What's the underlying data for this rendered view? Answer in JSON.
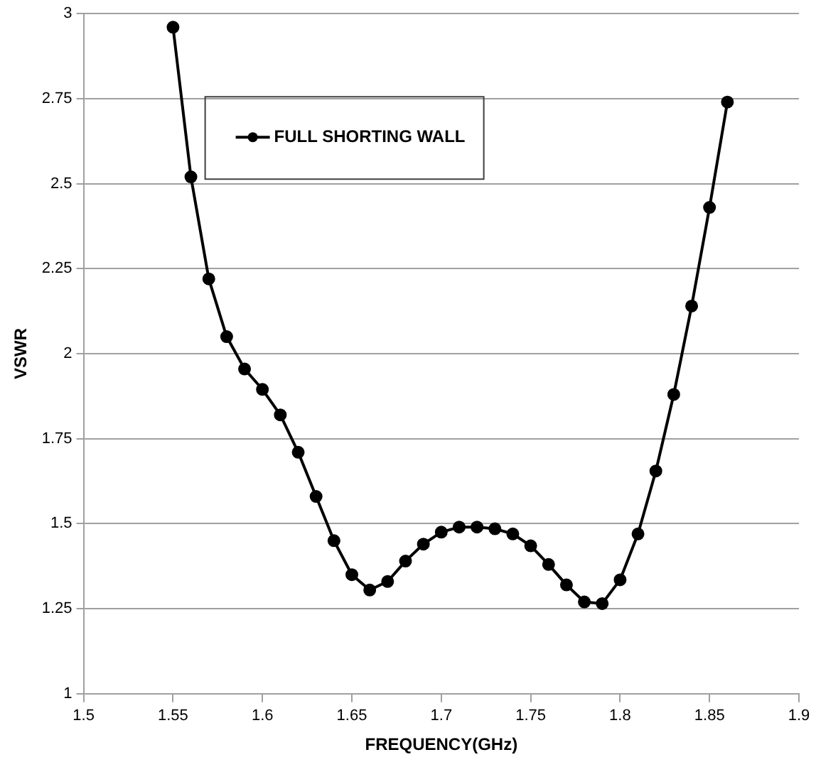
{
  "chart_data": {
    "type": "line",
    "xlabel": "FREQUENCY(GHz)",
    "ylabel": "VSWR",
    "x": [
      1.55,
      1.56,
      1.57,
      1.58,
      1.59,
      1.6,
      1.61,
      1.62,
      1.63,
      1.64,
      1.65,
      1.66,
      1.67,
      1.68,
      1.69,
      1.7,
      1.71,
      1.72,
      1.73,
      1.74,
      1.75,
      1.76,
      1.77,
      1.78,
      1.79,
      1.8,
      1.81,
      1.82,
      1.83,
      1.84,
      1.85,
      1.86
    ],
    "series": [
      {
        "name": "FULL SHORTING WALL",
        "color": "#000000",
        "values": [
          2.96,
          2.52,
          2.22,
          2.05,
          1.955,
          1.895,
          1.82,
          1.71,
          1.58,
          1.45,
          1.35,
          1.305,
          1.33,
          1.39,
          1.44,
          1.475,
          1.49,
          1.49,
          1.485,
          1.47,
          1.435,
          1.38,
          1.32,
          1.27,
          1.265,
          1.335,
          1.47,
          1.655,
          1.88,
          2.14,
          2.43,
          2.74
        ]
      }
    ],
    "xlim": [
      1.5,
      1.9
    ],
    "xticks": [
      1.5,
      1.55,
      1.6,
      1.65,
      1.7,
      1.75,
      1.8,
      1.85,
      1.9
    ],
    "ylim": [
      1,
      3
    ],
    "yticks": [
      1,
      1.25,
      1.5,
      1.75,
      2,
      2.25,
      2.5,
      2.75,
      3
    ],
    "grid": "y",
    "legend": "top left",
    "marker": "circle",
    "line_style": "solid"
  }
}
